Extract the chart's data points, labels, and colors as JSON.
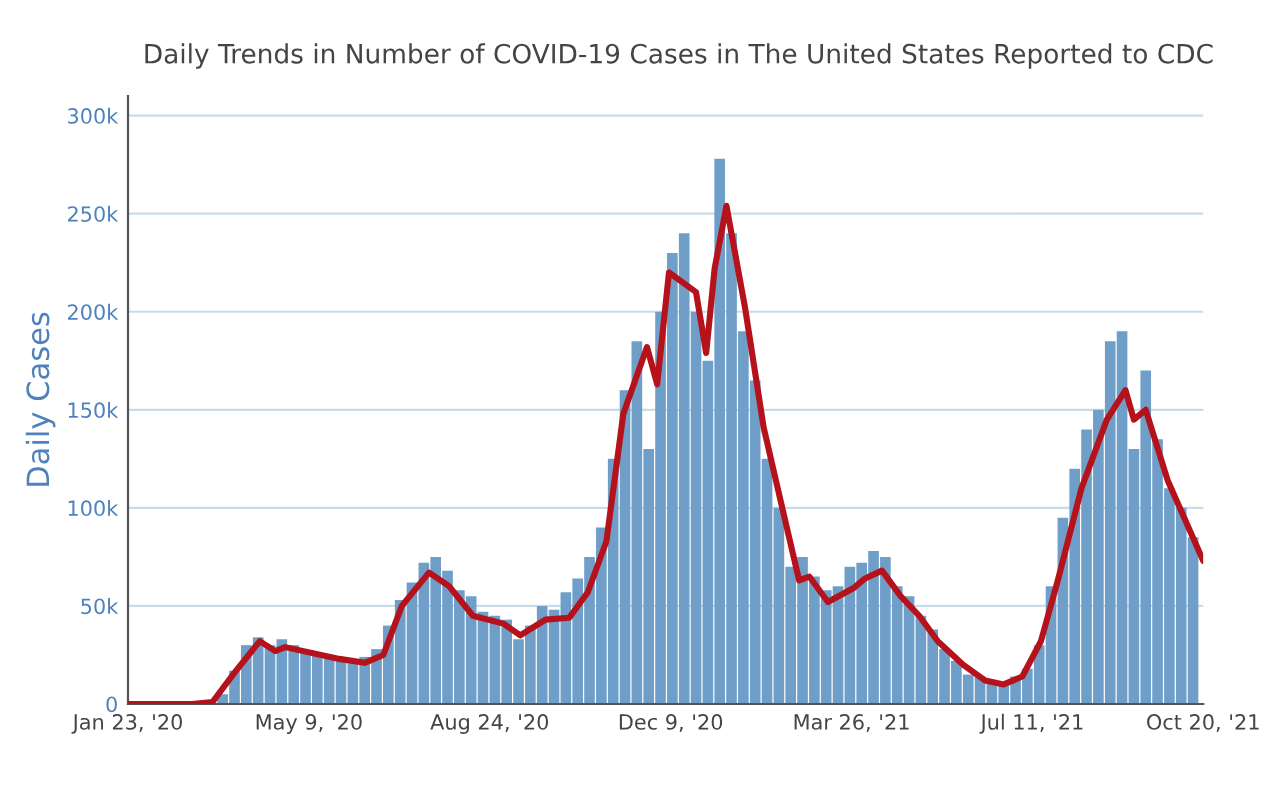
{
  "chart_data": {
    "type": "bar",
    "title": "Daily Trends in Number of COVID-19 Cases in The United States Reported to CDC",
    "ylabel": "Daily Cases",
    "xlim": [
      "2020-01-23",
      "2021-10-20"
    ],
    "xticks": [
      {
        "value": "2020-01-23",
        "label": "Jan 23, '20"
      },
      {
        "value": "2020-05-09",
        "label": "May 9, '20"
      },
      {
        "value": "2020-08-24",
        "label": "Aug 24, '20"
      },
      {
        "value": "2020-12-09",
        "label": "Dec 9, '20"
      },
      {
        "value": "2021-03-26",
        "label": "Mar 26, '21"
      },
      {
        "value": "2021-07-11",
        "label": "Jul 11, '21"
      },
      {
        "value": "2021-10-20",
        "label": "Oct 20, '21"
      }
    ],
    "ylim": [
      0,
      310000
    ],
    "yticks": [
      {
        "value": 0,
        "label": "0"
      },
      {
        "value": 50000,
        "label": "50k"
      },
      {
        "value": 100000,
        "label": "100k"
      },
      {
        "value": 150000,
        "label": "150k"
      },
      {
        "value": 200000,
        "label": "200k"
      },
      {
        "value": 250000,
        "label": "250k"
      },
      {
        "value": 300000,
        "label": "300k"
      }
    ],
    "grid": "y",
    "legend": false,
    "series": [
      {
        "color": "#6f9fc9",
        "x": [
          "2020-01-23",
          "2020-01-30",
          "2020-02-06",
          "2020-02-13",
          "2020-02-20",
          "2020-02-27",
          "2020-03-05",
          "2020-03-12",
          "2020-03-19",
          "2020-03-26",
          "2020-04-02",
          "2020-04-09",
          "2020-04-16",
          "2020-04-23",
          "2020-04-30",
          "2020-05-07",
          "2020-05-14",
          "2020-05-21",
          "2020-05-28",
          "2020-06-04",
          "2020-06-11",
          "2020-06-18",
          "2020-06-25",
          "2020-07-02",
          "2020-07-09",
          "2020-07-16",
          "2020-07-23",
          "2020-07-30",
          "2020-08-06",
          "2020-08-13",
          "2020-08-20",
          "2020-08-27",
          "2020-09-03",
          "2020-09-10",
          "2020-09-17",
          "2020-09-24",
          "2020-10-01",
          "2020-10-08",
          "2020-10-15",
          "2020-10-22",
          "2020-10-29",
          "2020-11-05",
          "2020-11-12",
          "2020-11-19",
          "2020-11-26",
          "2020-12-03",
          "2020-12-10",
          "2020-12-17",
          "2020-12-24",
          "2020-12-31",
          "2021-01-07",
          "2021-01-14",
          "2021-01-21",
          "2021-01-28",
          "2021-02-04",
          "2021-02-11",
          "2021-02-18",
          "2021-02-25",
          "2021-03-04",
          "2021-03-11",
          "2021-03-18",
          "2021-03-25",
          "2021-04-01",
          "2021-04-08",
          "2021-04-15",
          "2021-04-22",
          "2021-04-29",
          "2021-05-06",
          "2021-05-13",
          "2021-05-20",
          "2021-05-27",
          "2021-06-03",
          "2021-06-10",
          "2021-06-17",
          "2021-06-24",
          "2021-07-01",
          "2021-07-08",
          "2021-07-15",
          "2021-07-22",
          "2021-07-29",
          "2021-08-05",
          "2021-08-12",
          "2021-08-19",
          "2021-08-26",
          "2021-09-02",
          "2021-09-09",
          "2021-09-16",
          "2021-09-23",
          "2021-09-30",
          "2021-10-07",
          "2021-10-14"
        ],
        "values": [
          0,
          0,
          0,
          0,
          0,
          0,
          0,
          null,
          5000,
          17000,
          30000,
          34000,
          30000,
          33000,
          30000,
          27000,
          25000,
          24000,
          23000,
          22000,
          24000,
          28000,
          40000,
          53000,
          62000,
          72000,
          75000,
          68000,
          58000,
          55000,
          47000,
          45000,
          43000,
          33000,
          40000,
          50000,
          48000,
          57000,
          64000,
          75000,
          90000,
          125000,
          160000,
          185000,
          130000,
          200000,
          230000,
          240000,
          200000,
          175000,
          278000,
          240000,
          190000,
          165000,
          125000,
          100000,
          70000,
          75000,
          65000,
          58000,
          60000,
          70000,
          72000,
          78000,
          75000,
          60000,
          55000,
          45000,
          38000,
          28000,
          22000,
          15000,
          14000,
          12000,
          11000,
          14000,
          18000,
          30000,
          60000,
          95000,
          120000,
          140000,
          150000,
          185000,
          190000,
          130000,
          170000,
          135000,
          110000,
          100000,
          85000
        ]
      },
      {
        "type": "line",
        "color": "#b5121b",
        "x": [
          "2020-01-23",
          "2020-03-01",
          "2020-03-13",
          "2020-03-26",
          "2020-04-08",
          "2020-04-10",
          "2020-04-19",
          "2020-04-25",
          "2020-05-27",
          "2020-06-11",
          "2020-06-22",
          "2020-07-03",
          "2020-07-19",
          "2020-07-31",
          "2020-08-14",
          "2020-09-01",
          "2020-09-11",
          "2020-09-26",
          "2020-10-10",
          "2020-10-21",
          "2020-11-01",
          "2020-11-11",
          "2020-11-25",
          "2020-12-01",
          "2020-12-08",
          "2020-12-24",
          "2020-12-30",
          "2021-01-04",
          "2021-01-11",
          "2021-01-22",
          "2021-02-02",
          "2021-02-13",
          "2021-02-23",
          "2021-03-01",
          "2021-03-12",
          "2021-03-27",
          "2021-04-03",
          "2021-04-13",
          "2021-04-24",
          "2021-05-05",
          "2021-05-16",
          "2021-05-31",
          "2021-06-13",
          "2021-06-24",
          "2021-07-05",
          "2021-07-16",
          "2021-07-26",
          "2021-08-09",
          "2021-08-24",
          "2021-09-04",
          "2021-09-09",
          "2021-09-16",
          "2021-09-29",
          "2021-10-20"
        ],
        "values": [
          0,
          0,
          1000,
          16000,
          30000,
          32000,
          27000,
          29000,
          23000,
          21000,
          25000,
          50000,
          67000,
          60000,
          45000,
          41000,
          35000,
          43000,
          44000,
          57000,
          83000,
          148000,
          182000,
          163000,
          220000,
          210000,
          179000,
          222000,
          254000,
          202000,
          141000,
          100000,
          63000,
          65000,
          52000,
          59000,
          64000,
          68000,
          55000,
          45000,
          32000,
          20000,
          12000,
          10000,
          14000,
          32000,
          63000,
          110000,
          145000,
          160000,
          145000,
          150000,
          114000,
          73000
        ]
      }
    ]
  }
}
